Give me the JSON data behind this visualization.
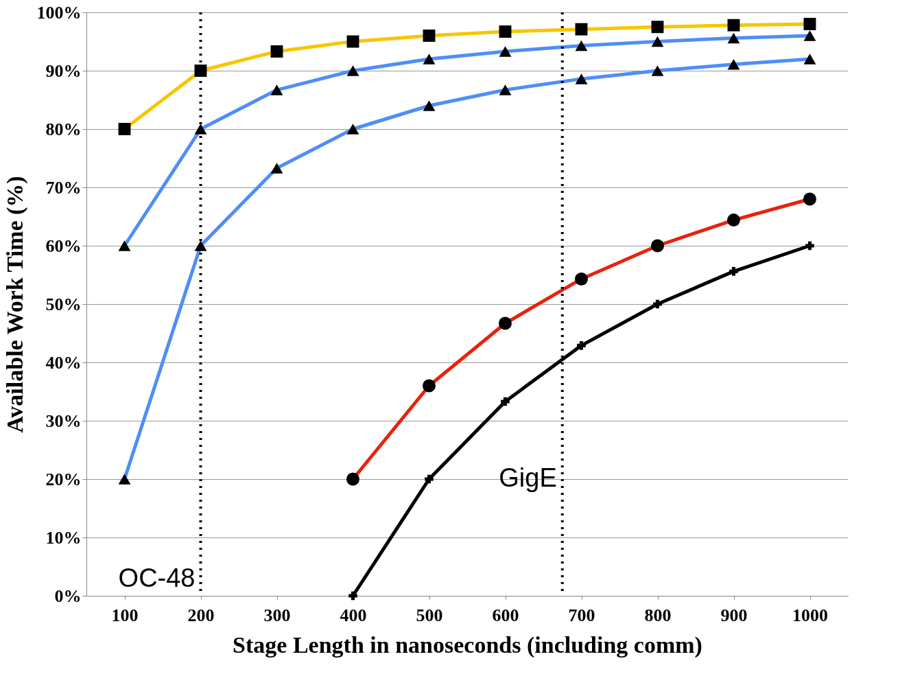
{
  "chart_data": {
    "type": "line",
    "xlabel": "Stage Length in nanoseconds (including comm)",
    "ylabel": "Available Work Time (%)",
    "x": [
      100,
      200,
      300,
      400,
      500,
      600,
      700,
      800,
      900,
      1000
    ],
    "xlim": [
      50,
      1050
    ],
    "xticks": [
      100,
      200,
      300,
      400,
      500,
      600,
      700,
      800,
      900,
      1000
    ],
    "ylim": [
      0,
      100
    ],
    "yticks": [
      {
        "value": 0,
        "label": "0%"
      },
      {
        "value": 10,
        "label": "10%"
      },
      {
        "value": 20,
        "label": "20%"
      },
      {
        "value": 30,
        "label": "30%"
      },
      {
        "value": 40,
        "label": "40%"
      },
      {
        "value": 50,
        "label": "50%"
      },
      {
        "value": 60,
        "label": "60%"
      },
      {
        "value": 70,
        "label": "70%"
      },
      {
        "value": 80,
        "label": "80%"
      },
      {
        "value": 90,
        "label": "90%"
      },
      {
        "value": 100,
        "label": "100%"
      }
    ],
    "grid": "y",
    "series": [
      {
        "color": "#f7c600",
        "marker": "square",
        "values": [
          80,
          90,
          93.3,
          95,
          96,
          96.7,
          97.1,
          97.5,
          97.8,
          98
        ]
      },
      {
        "color": "#4f8ef7",
        "marker": "triangle",
        "values": [
          60,
          80,
          86.7,
          90,
          92,
          93.3,
          94.3,
          95,
          95.6,
          96
        ]
      },
      {
        "color": "#4f8ef7",
        "marker": "triangle",
        "values": [
          20,
          60,
          73.3,
          80,
          84,
          86.7,
          88.6,
          90,
          91.1,
          92
        ]
      },
      {
        "color": "#e8220c",
        "marker": "circle",
        "values": [
          null,
          null,
          null,
          20,
          36,
          46.7,
          54.3,
          60,
          64.4,
          68
        ]
      },
      {
        "color": "#000000",
        "marker": "cross",
        "values": [
          null,
          null,
          null,
          0,
          20,
          33.3,
          42.9,
          50,
          55.6,
          60
        ]
      }
    ],
    "ref_lines": [
      {
        "axis": "x",
        "value": 200,
        "label": "OC-48",
        "line_style": "dotted",
        "color": "#000000"
      },
      {
        "axis": "x",
        "value": 675,
        "label": "GigE",
        "line_style": "dotted",
        "color": "#000000"
      }
    ]
  }
}
